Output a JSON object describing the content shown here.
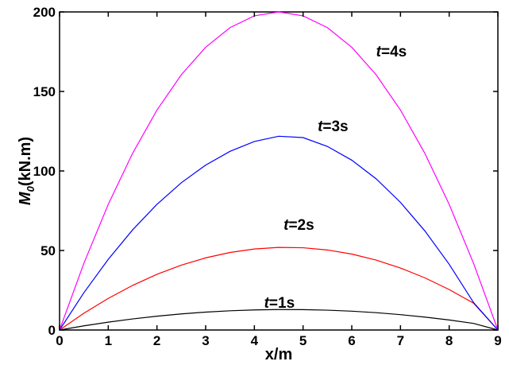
{
  "chart_data": {
    "type": "line",
    "xlabel": "x/m",
    "ylabel": {
      "symbol": "M",
      "subscript": "0",
      "unit": "(kN.m)"
    },
    "xlim": [
      0,
      9
    ],
    "ylim": [
      0,
      200
    ],
    "xticks": [
      "0",
      "1",
      "2",
      "3",
      "4",
      "5",
      "6",
      "7",
      "8",
      "9"
    ],
    "yticks": [
      "0",
      "50",
      "100",
      "150",
      "200"
    ],
    "x": [
      0,
      0.5,
      1,
      1.5,
      2,
      2.5,
      3,
      3.5,
      4,
      4.5,
      5,
      5.5,
      6,
      6.5,
      7,
      7.5,
      8,
      8.5,
      9
    ],
    "grid": false,
    "series": [
      {
        "name": "t=1s",
        "time_var": "t",
        "time_val": "=1s",
        "color": "#000000",
        "values": [
          0,
          2.62,
          4.94,
          6.96,
          8.69,
          10.12,
          11.26,
          12.09,
          12.64,
          12.88,
          12.83,
          12.48,
          11.84,
          10.9,
          9.66,
          8.13,
          6.3,
          4.17,
          0
        ]
      },
      {
        "name": "t=2s",
        "time_var": "t",
        "time_val": "=2s",
        "color": "#ff0000",
        "values": [
          0,
          10.54,
          19.89,
          28.05,
          35.02,
          40.79,
          45.37,
          48.75,
          50.93,
          51.93,
          51.72,
          50.33,
          47.74,
          43.96,
          38.98,
          32.81,
          25.45,
          16.9,
          0
        ]
      },
      {
        "name": "t=3s",
        "time_var": "t",
        "time_val": "=3s",
        "color": "#0000ff",
        "values": [
          0,
          23.46,
          44.44,
          62.96,
          79.01,
          92.59,
          103.7,
          112.35,
          118.52,
          121.85,
          120.99,
          115.43,
          106.79,
          95.06,
          80.25,
          62.35,
          41.36,
          17.28,
          0
        ]
      },
      {
        "name": "t=4s",
        "time_var": "t",
        "time_val": "=4s",
        "color": "#ff00ff",
        "values": [
          0,
          41.98,
          79.01,
          111.11,
          138.27,
          160.49,
          177.78,
          190.12,
          197.53,
          200,
          197.53,
          190.12,
          177.78,
          160.49,
          138.27,
          111.11,
          79.01,
          41.98,
          0
        ]
      }
    ]
  }
}
